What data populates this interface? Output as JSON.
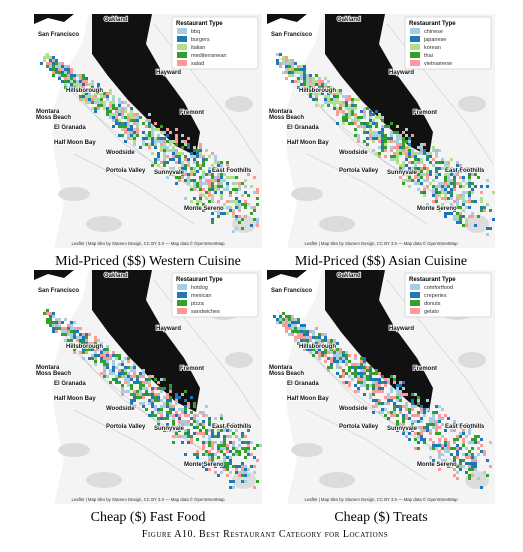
{
  "panels": [
    {
      "caption": "Mid-Priced ($$) Western Cuisine",
      "legend": {
        "title": "Restaurant Type",
        "items": [
          {
            "label": "bbq",
            "color": "#a6cee3"
          },
          {
            "label": "burgers",
            "color": "#1f78b4"
          },
          {
            "label": "italian",
            "color": "#b2df8a"
          },
          {
            "label": "mediterranean",
            "color": "#33a02c"
          },
          {
            "label": "salad",
            "color": "#fb9a99"
          }
        ]
      }
    },
    {
      "caption": "Mid-Priced ($$) Asian Cuisine",
      "legend": {
        "title": "Restaurant Type",
        "items": [
          {
            "label": "chinese",
            "color": "#a6cee3"
          },
          {
            "label": "japanese",
            "color": "#1f78b4"
          },
          {
            "label": "korean",
            "color": "#b2df8a"
          },
          {
            "label": "thai",
            "color": "#33a02c"
          },
          {
            "label": "vietnamese",
            "color": "#fb9a99"
          }
        ]
      }
    },
    {
      "caption": "Cheap ($) Fast Food",
      "legend": {
        "title": "Restaurant Type",
        "items": [
          {
            "label": "hotdog",
            "color": "#a6cee3"
          },
          {
            "label": "mexican",
            "color": "#1f78b4"
          },
          {
            "label": "pizza",
            "color": "#33a02c"
          },
          {
            "label": "sandwiches",
            "color": "#fb9a99"
          }
        ]
      }
    },
    {
      "caption": "Cheap ($) Treats",
      "legend": {
        "title": "Restaurant Type",
        "items": [
          {
            "label": "comfortfood",
            "color": "#a6cee3"
          },
          {
            "label": "creperies",
            "color": "#1f78b4"
          },
          {
            "label": "donuts",
            "color": "#33a02c"
          },
          {
            "label": "gelato",
            "color": "#fb9a99"
          }
        ]
      }
    }
  ],
  "map_labels": [
    "San Francisco",
    "Oakland",
    "Hayward",
    "Fremont",
    "Hillsborough",
    "Montara",
    "Moss Beach",
    "El Granada",
    "Half Moon Bay",
    "Woodside",
    "Portola Valley",
    "Sunnyvale",
    "East Foothills",
    "Monte Sereno"
  ],
  "attribution": "Leaflet | Map tiles by Stamen Design, CC BY 3.0 — Map data © OpenStreetMap",
  "figure_caption": "Figure A10. Best Restaurant Category for Locations"
}
